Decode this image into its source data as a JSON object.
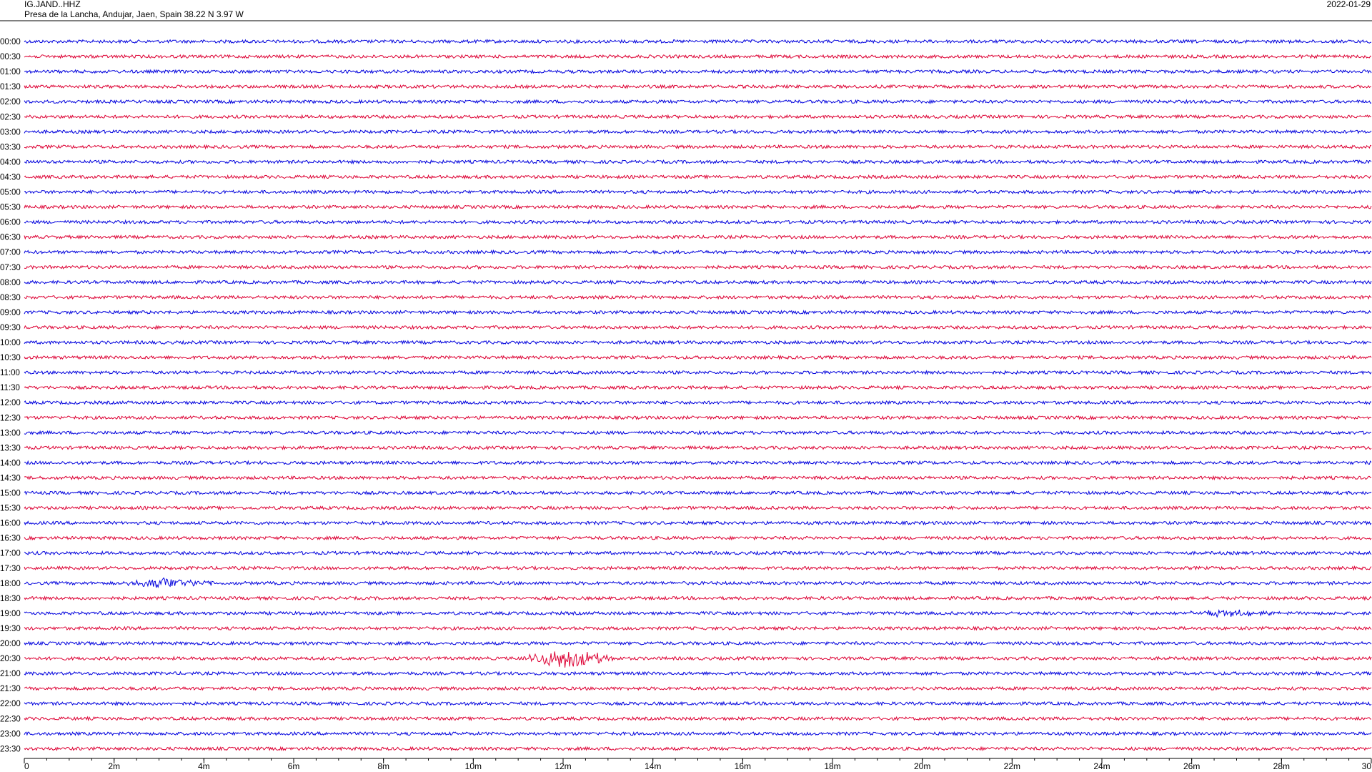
{
  "header": {
    "station": "IG.JAND..HHZ",
    "location": "Presa de la Lancha, Andujar, Jaen, Spain  38.22 N 3.97 W",
    "date": "2022-01-29"
  },
  "colors": {
    "even_row": "#0000dd",
    "odd_row": "#dd0033",
    "axis": "#000000",
    "frame": "#000000"
  },
  "chart_data": {
    "type": "line",
    "title": "",
    "xlabel": "",
    "ylabel": "",
    "x_unit": "minutes",
    "xlim": [
      0,
      30
    ],
    "x_ticks": [
      "0",
      "2m",
      "4m",
      "6m",
      "8m",
      "10m",
      "12m",
      "14m",
      "16m",
      "18m",
      "20m",
      "22m",
      "24m",
      "26m",
      "28m",
      "30"
    ],
    "minor_tick_step": 0.5,
    "rows": [
      "00:00",
      "00:30",
      "01:00",
      "01:30",
      "02:00",
      "02:30",
      "03:00",
      "03:30",
      "04:00",
      "04:30",
      "05:00",
      "05:30",
      "06:00",
      "06:30",
      "07:00",
      "07:30",
      "08:00",
      "08:30",
      "09:00",
      "09:30",
      "10:00",
      "10:30",
      "11:00",
      "11:30",
      "12:00",
      "12:30",
      "13:00",
      "13:30",
      "14:00",
      "14:30",
      "15:00",
      "15:30",
      "16:00",
      "16:30",
      "17:00",
      "17:30",
      "18:00",
      "18:30",
      "19:00",
      "19:30",
      "20:00",
      "20:30",
      "21:00",
      "21:30",
      "22:00",
      "22:30",
      "23:00",
      "23:30"
    ],
    "row_color_pattern": [
      "even_row",
      "odd_row"
    ],
    "events": [
      {
        "row": "18:00",
        "minute": 3.2,
        "amplitude": 0.6
      },
      {
        "row": "19:00",
        "minute": 26.8,
        "amplitude": 0.35
      },
      {
        "row": "20:30",
        "minute": 12.1,
        "amplitude": 1.2
      }
    ]
  }
}
